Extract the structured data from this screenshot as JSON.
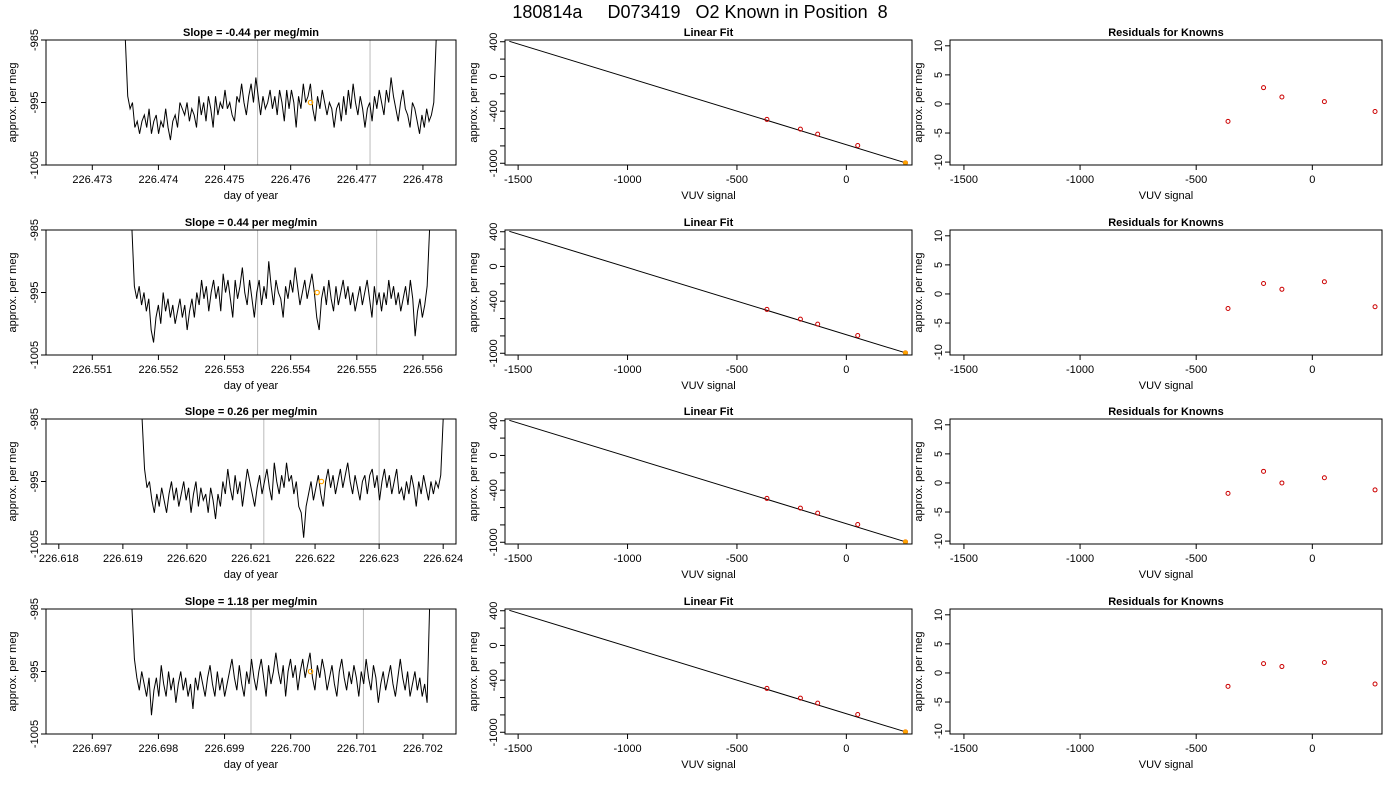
{
  "page": {
    "title": "180814a     D073419   O2 Known in Position  8"
  },
  "colors": {
    "trace": "#000000",
    "marker": "#ffa500",
    "residual": "#cc0000",
    "guide": "#bbbbbb",
    "fit": "#000000"
  },
  "chart_data": [
    {
      "type": "line",
      "panel": "timeseries",
      "row": 0,
      "title": "Slope =  -0.44  per meg/min",
      "xlabel": "day of year",
      "ylabel": "approx. per meg",
      "xlim": [
        226.4723,
        226.4785
      ],
      "ylim": [
        -1005,
        -985
      ],
      "xticks": [
        "226.473",
        "226.474",
        "226.475",
        "226.476",
        "226.477",
        "226.478"
      ],
      "xtick_values": [
        226.473,
        226.474,
        226.475,
        226.476,
        226.477,
        226.478
      ],
      "yticks": [
        "-1005",
        "-995",
        "-985"
      ],
      "ytick_values": [
        -1005,
        -995,
        -985
      ],
      "vlines": [
        226.4755,
        226.4772
      ],
      "x_start": 226.4735,
      "x_end": 226.4782,
      "values": [
        -985,
        -994,
        -996,
        -995,
        -999,
        -998,
        -1000,
        -998,
        -997,
        -999,
        -996,
        -1000,
        -998,
        -997,
        -1000,
        -998,
        -999,
        -996,
        -999,
        -1001,
        -998,
        -997,
        -999,
        -995,
        -996,
        -997,
        -995,
        -998,
        -996,
        -997,
        -999,
        -994,
        -997,
        -995,
        -998,
        -994,
        -996,
        -999,
        -994,
        -997,
        -995,
        -996,
        -993,
        -996,
        -995,
        -997,
        -998,
        -994,
        -995,
        -992,
        -995,
        -997,
        -994,
        -992,
        -995,
        -991,
        -994,
        -997,
        -994,
        -996,
        -995,
        -993,
        -996,
        -994,
        -997,
        -993,
        -995,
        -998,
        -993,
        -996,
        -993,
        -995,
        -999,
        -994,
        -996,
        -992,
        -995,
        -994,
        -992,
        -996,
        -998,
        -994,
        -996,
        -993,
        -995,
        -997,
        -995,
        -996,
        -999,
        -996,
        -995,
        -998,
        -994,
        -997,
        -993,
        -996,
        -992,
        -995,
        -997,
        -994,
        -996,
        -999,
        -996,
        -995,
        -998,
        -994,
        -996,
        -993,
        -995,
        -997,
        -993,
        -995,
        -991,
        -994,
        -996,
        -998,
        -995,
        -993,
        -996,
        -997,
        -999,
        -995,
        -996,
        -998,
        -1000,
        -997,
        -999,
        -996,
        -998,
        -997,
        -995,
        -985
      ],
      "marker": {
        "x": 226.4763,
        "y": -995
      }
    },
    {
      "type": "scatter",
      "panel": "linear_fit",
      "row": 0,
      "title": "Linear Fit",
      "xlabel": "VUV signal",
      "ylabel": "approx. per meg",
      "xlim": [
        -1560,
        300
      ],
      "ylim": [
        -1020,
        420
      ],
      "xticks": [
        "-1500",
        "-1000",
        "-500",
        "0"
      ],
      "xtick_values": [
        -1500,
        -1000,
        -500,
        0
      ],
      "yticks": [
        "400",
        "0",
        "-400",
        "-1000"
      ],
      "ytick_values": [
        400,
        0,
        -400,
        -1000
      ],
      "minor_yticks": [
        200,
        -200,
        -600,
        -800
      ],
      "fit_line": {
        "x": [
          -1540,
          270
        ],
        "y": [
          405,
          -995
        ]
      },
      "points": [
        {
          "x": -363,
          "y": -495
        },
        {
          "x": -210,
          "y": -607
        },
        {
          "x": -131,
          "y": -664
        },
        {
          "x": 52,
          "y": -795
        },
        {
          "x": 270,
          "y": -995
        }
      ]
    },
    {
      "type": "scatter",
      "panel": "residuals",
      "row": 0,
      "title": "Residuals for Knowns",
      "xlabel": "VUV signal",
      "ylabel": "approx. per meg",
      "xlim": [
        -1560,
        300
      ],
      "ylim": [
        -10.5,
        11
      ],
      "xticks": [
        "-1500",
        "-1000",
        "-500",
        "0"
      ],
      "xtick_values": [
        -1500,
        -1000,
        -500,
        0
      ],
      "yticks": [
        "10",
        "5",
        "0",
        "-5",
        "-10"
      ],
      "ytick_values": [
        10,
        5,
        0,
        -5,
        -10
      ],
      "points": [
        {
          "x": -363,
          "y": -3
        },
        {
          "x": -210,
          "y": 2.8
        },
        {
          "x": -131,
          "y": 1.2
        },
        {
          "x": 52,
          "y": 0.4
        },
        {
          "x": 270,
          "y": -1.3
        }
      ]
    },
    {
      "type": "line",
      "panel": "timeseries",
      "row": 1,
      "title": "Slope =  0.44  per meg/min",
      "xlabel": "day of year",
      "ylabel": "approx. per meg",
      "xlim": [
        226.5503,
        226.5565
      ],
      "ylim": [
        -1005,
        -985
      ],
      "xticks": [
        "226.551",
        "226.552",
        "226.553",
        "226.554",
        "226.555",
        "226.556"
      ],
      "xtick_values": [
        226.551,
        226.552,
        226.553,
        226.554,
        226.555,
        226.556
      ],
      "yticks": [
        "-1005",
        "-995",
        "-985"
      ],
      "ytick_values": [
        -1005,
        -995,
        -985
      ],
      "vlines": [
        226.5535,
        226.5553
      ],
      "x_start": 226.5516,
      "x_end": 226.5561,
      "values": [
        -985,
        -994,
        -996,
        -994,
        -997,
        -995,
        -998,
        -996,
        -1001,
        -1003,
        -999,
        -997,
        -1000,
        -995,
        -998,
        -996,
        -999,
        -997,
        -1000,
        -998,
        -996,
        -999,
        -997,
        -1001,
        -998,
        -996,
        -999,
        -995,
        -997,
        -993,
        -996,
        -994,
        -998,
        -995,
        -993,
        -996,
        -994,
        -998,
        -992,
        -995,
        -993,
        -996,
        -999,
        -993,
        -996,
        -994,
        -991,
        -995,
        -997,
        -993,
        -996,
        -999,
        -995,
        -993,
        -997,
        -994,
        -996,
        -990,
        -994,
        -997,
        -993,
        -995,
        -996,
        -999,
        -994,
        -996,
        -993,
        -995,
        -991,
        -994,
        -997,
        -995,
        -993,
        -996,
        -994,
        -992,
        -995,
        -999,
        -1001,
        -996,
        -994,
        -997,
        -993,
        -996,
        -998,
        -994,
        -997,
        -995,
        -993,
        -996,
        -994,
        -997,
        -995,
        -998,
        -996,
        -994,
        -997,
        -995,
        -993,
        -996,
        -999,
        -994,
        -997,
        -995,
        -998,
        -995,
        -997,
        -993,
        -996,
        -994,
        -997,
        -995,
        -998,
        -996,
        -994,
        -997,
        -993,
        -996,
        -1002,
        -998,
        -996,
        -999,
        -997,
        -994,
        -985
      ],
      "marker": {
        "x": 226.5544,
        "y": -995
      }
    },
    {
      "type": "scatter",
      "panel": "linear_fit",
      "row": 1,
      "title": "Linear Fit",
      "xlabel": "VUV signal",
      "ylabel": "approx. per meg",
      "xlim": [
        -1560,
        300
      ],
      "ylim": [
        -1020,
        420
      ],
      "xticks": [
        "-1500",
        "-1000",
        "-500",
        "0"
      ],
      "xtick_values": [
        -1500,
        -1000,
        -500,
        0
      ],
      "yticks": [
        "400",
        "0",
        "-400",
        "-1000"
      ],
      "ytick_values": [
        400,
        0,
        -400,
        -1000
      ],
      "minor_yticks": [
        200,
        -200,
        -600,
        -800
      ],
      "fit_line": {
        "x": [
          -1540,
          270
        ],
        "y": [
          405,
          -995
        ]
      },
      "points": [
        {
          "x": -363,
          "y": -495
        },
        {
          "x": -210,
          "y": -607
        },
        {
          "x": -131,
          "y": -664
        },
        {
          "x": 52,
          "y": -795
        },
        {
          "x": 270,
          "y": -995
        }
      ]
    },
    {
      "type": "scatter",
      "panel": "residuals",
      "row": 1,
      "title": "Residuals for Knowns",
      "xlabel": "VUV signal",
      "ylabel": "approx. per meg",
      "xlim": [
        -1560,
        300
      ],
      "ylim": [
        -10.5,
        11
      ],
      "xticks": [
        "-1500",
        "-1000",
        "-500",
        "0"
      ],
      "xtick_values": [
        -1500,
        -1000,
        -500,
        0
      ],
      "yticks": [
        "10",
        "5",
        "0",
        "-5",
        "-10"
      ],
      "ytick_values": [
        10,
        5,
        0,
        -5,
        -10
      ],
      "points": [
        {
          "x": -363,
          "y": -2.5
        },
        {
          "x": -210,
          "y": 1.8
        },
        {
          "x": -131,
          "y": 0.8
        },
        {
          "x": 52,
          "y": 2.1
        },
        {
          "x": 270,
          "y": -2.2
        }
      ]
    },
    {
      "type": "line",
      "panel": "timeseries",
      "row": 2,
      "title": "Slope =  0.26  per meg/min",
      "xlabel": "day of year",
      "ylabel": "approx. per meg",
      "xlim": [
        226.6178,
        226.6242
      ],
      "ylim": [
        -1005,
        -985
      ],
      "xticks": [
        "226.618",
        "226.619",
        "226.620",
        "226.621",
        "226.622",
        "226.623",
        "226.624"
      ],
      "xtick_values": [
        226.618,
        226.619,
        226.62,
        226.621,
        226.622,
        226.623,
        226.624
      ],
      "yticks": [
        "-1005",
        "-995",
        "-985"
      ],
      "ytick_values": [
        -1005,
        -995,
        -985
      ],
      "vlines": [
        226.6212,
        226.623
      ],
      "x_start": 226.6193,
      "x_end": 226.624,
      "values": [
        -985,
        -993,
        -996,
        -995,
        -998,
        -1000,
        -997,
        -999,
        -996,
        -998,
        -1000,
        -997,
        -995,
        -998,
        -996,
        -999,
        -997,
        -995,
        -998,
        -996,
        -1000,
        -997,
        -995,
        -999,
        -996,
        -998,
        -997,
        -1000,
        -996,
        -998,
        -1001,
        -997,
        -999,
        -995,
        -997,
        -993,
        -996,
        -998,
        -994,
        -997,
        -995,
        -999,
        -996,
        -993,
        -995,
        -997,
        -999,
        -996,
        -994,
        -997,
        -995,
        -993,
        -996,
        -998,
        -992,
        -995,
        -997,
        -994,
        -996,
        -992,
        -995,
        -994,
        -997,
        -995,
        -999,
        -1000,
        -1004,
        -999,
        -997,
        -995,
        -998,
        -996,
        -994,
        -997,
        -999,
        -995,
        -993,
        -996,
        -994,
        -997,
        -995,
        -993,
        -996,
        -994,
        -992,
        -995,
        -997,
        -994,
        -996,
        -998,
        -995,
        -994,
        -997,
        -994,
        -993,
        -996,
        -994,
        -998,
        -995,
        -993,
        -996,
        -994,
        -997,
        -995,
        -993,
        -997,
        -996,
        -998,
        -995,
        -997,
        -994,
        -996,
        -999,
        -995,
        -997,
        -994,
        -996,
        -998,
        -995,
        -997,
        -995,
        -996,
        -994,
        -985
      ],
      "marker": {
        "x": 226.6221,
        "y": -995
      }
    },
    {
      "type": "scatter",
      "panel": "linear_fit",
      "row": 2,
      "title": "Linear Fit",
      "xlabel": "VUV signal",
      "ylabel": "approx. per meg",
      "xlim": [
        -1560,
        300
      ],
      "ylim": [
        -1020,
        420
      ],
      "xticks": [
        "-1500",
        "-1000",
        "-500",
        "0"
      ],
      "xtick_values": [
        -1500,
        -1000,
        -500,
        0
      ],
      "yticks": [
        "400",
        "0",
        "-400",
        "-1000"
      ],
      "ytick_values": [
        400,
        0,
        -400,
        -1000
      ],
      "minor_yticks": [
        200,
        -200,
        -600,
        -800
      ],
      "fit_line": {
        "x": [
          -1540,
          270
        ],
        "y": [
          405,
          -995
        ]
      },
      "points": [
        {
          "x": -363,
          "y": -495
        },
        {
          "x": -210,
          "y": -607
        },
        {
          "x": -131,
          "y": -664
        },
        {
          "x": 52,
          "y": -795
        },
        {
          "x": 270,
          "y": -995
        }
      ]
    },
    {
      "type": "scatter",
      "panel": "residuals",
      "row": 2,
      "title": "Residuals for Knowns",
      "xlabel": "VUV signal",
      "ylabel": "approx. per meg",
      "xlim": [
        -1560,
        300
      ],
      "ylim": [
        -10.5,
        11
      ],
      "xticks": [
        "-1500",
        "-1000",
        "-500",
        "0"
      ],
      "xtick_values": [
        -1500,
        -1000,
        -500,
        0
      ],
      "yticks": [
        "10",
        "5",
        "0",
        "-5",
        "-10"
      ],
      "ytick_values": [
        10,
        5,
        0,
        -5,
        -10
      ],
      "points": [
        {
          "x": -363,
          "y": -1.8
        },
        {
          "x": -210,
          "y": 2
        },
        {
          "x": -131,
          "y": 0
        },
        {
          "x": 52,
          "y": 0.9
        },
        {
          "x": 270,
          "y": -1.2
        }
      ]
    },
    {
      "type": "line",
      "panel": "timeseries",
      "row": 3,
      "title": "Slope =  1.18  per meg/min",
      "xlabel": "day of year",
      "ylabel": "approx. per meg",
      "xlim": [
        226.6963,
        226.7025
      ],
      "ylim": [
        -1005,
        -985
      ],
      "xticks": [
        "226.697",
        "226.698",
        "226.699",
        "226.700",
        "226.701",
        "226.702"
      ],
      "xtick_values": [
        226.697,
        226.698,
        226.699,
        226.7,
        226.701,
        226.702
      ],
      "yticks": [
        "-1005",
        "-995",
        "-985"
      ],
      "ytick_values": [
        -1005,
        -995,
        -985
      ],
      "vlines": [
        226.6994,
        226.7011
      ],
      "x_start": 226.6976,
      "x_end": 226.7021,
      "values": [
        -985,
        -993,
        -996,
        -998,
        -995,
        -997,
        -999,
        -996,
        -1002,
        -998,
        -996,
        -999,
        -994,
        -997,
        -999,
        -995,
        -998,
        -996,
        -1000,
        -997,
        -995,
        -998,
        -996,
        -999,
        -997,
        -1001,
        -996,
        -998,
        -995,
        -997,
        -999,
        -996,
        -994,
        -997,
        -999,
        -995,
        -998,
        -996,
        -999,
        -997,
        -995,
        -993,
        -996,
        -998,
        -994,
        -997,
        -999,
        -995,
        -997,
        -993,
        -996,
        -998,
        -995,
        -993,
        -996,
        -999,
        -994,
        -997,
        -995,
        -992,
        -995,
        -997,
        -994,
        -999,
        -995,
        -993,
        -996,
        -994,
        -998,
        -995,
        -993,
        -996,
        -994,
        -992,
        -996,
        -998,
        -994,
        -996,
        -993,
        -995,
        -998,
        -996,
        -994,
        -997,
        -999,
        -995,
        -993,
        -996,
        -998,
        -995,
        -997,
        -994,
        -996,
        -999,
        -995,
        -997,
        -993,
        -996,
        -998,
        -994,
        -996,
        -1000,
        -997,
        -995,
        -998,
        -996,
        -994,
        -997,
        -999,
        -996,
        -993,
        -996,
        -998,
        -995,
        -999,
        -997,
        -995,
        -998,
        -996,
        -999,
        -997,
        -1000,
        -985
      ],
      "marker": {
        "x": 226.7003,
        "y": -995
      }
    },
    {
      "type": "scatter",
      "panel": "linear_fit",
      "row": 3,
      "title": "Linear Fit",
      "xlabel": "VUV signal",
      "ylabel": "approx. per meg",
      "xlim": [
        -1560,
        300
      ],
      "ylim": [
        -1020,
        420
      ],
      "xticks": [
        "-1500",
        "-1000",
        "-500",
        "0"
      ],
      "xtick_values": [
        -1500,
        -1000,
        -500,
        0
      ],
      "yticks": [
        "400",
        "0",
        "-400",
        "-1000"
      ],
      "ytick_values": [
        400,
        0,
        -400,
        -1000
      ],
      "minor_yticks": [
        200,
        -200,
        -600,
        -800
      ],
      "fit_line": {
        "x": [
          -1540,
          270
        ],
        "y": [
          405,
          -995
        ]
      },
      "points": [
        {
          "x": -363,
          "y": -495
        },
        {
          "x": -210,
          "y": -607
        },
        {
          "x": -131,
          "y": -664
        },
        {
          "x": 52,
          "y": -795
        },
        {
          "x": 270,
          "y": -995
        }
      ]
    },
    {
      "type": "scatter",
      "panel": "residuals",
      "row": 3,
      "title": "Residuals for Knowns",
      "xlabel": "VUV signal",
      "ylabel": "approx. per meg",
      "xlim": [
        -1560,
        300
      ],
      "ylim": [
        -10.5,
        11
      ],
      "xticks": [
        "-1500",
        "-1000",
        "-500",
        "0"
      ],
      "xtick_values": [
        -1500,
        -1000,
        -500,
        0
      ],
      "yticks": [
        "10",
        "5",
        "0",
        "-5",
        "-10"
      ],
      "ytick_values": [
        10,
        5,
        0,
        -5,
        -10
      ],
      "points": [
        {
          "x": -363,
          "y": -2.3
        },
        {
          "x": -210,
          "y": 1.6
        },
        {
          "x": -131,
          "y": 1.1
        },
        {
          "x": 52,
          "y": 1.8
        },
        {
          "x": 270,
          "y": -1.9
        }
      ]
    }
  ]
}
